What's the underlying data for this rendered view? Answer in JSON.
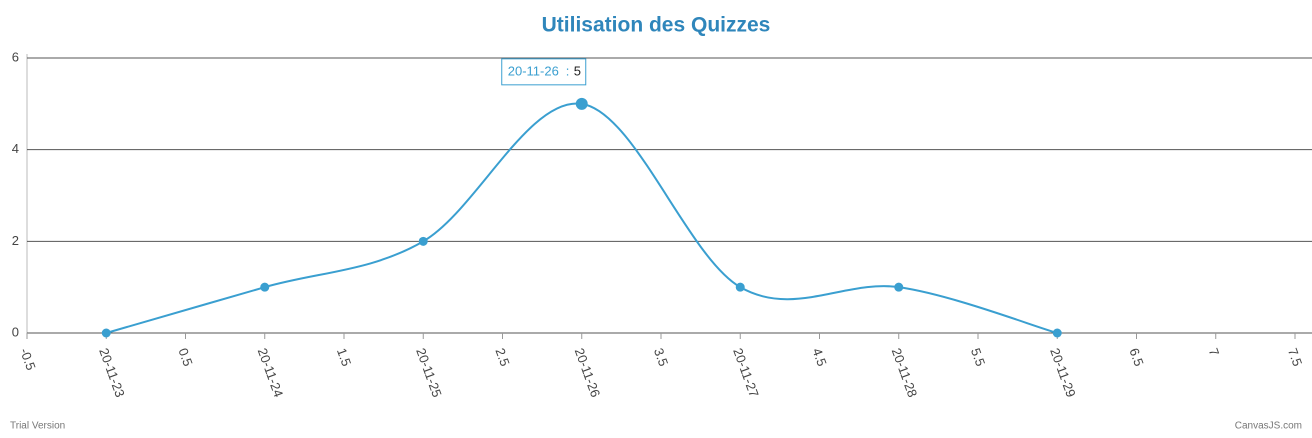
{
  "chart_data": {
    "type": "line",
    "title": "Utilisation des Quizzes",
    "x": [
      0,
      1,
      2,
      3,
      4,
      5,
      6
    ],
    "values": [
      0,
      1,
      2,
      5,
      1,
      1,
      0
    ],
    "color": "#3a9fd0",
    "xlim": [
      -0.5,
      7.5
    ],
    "xticks": [
      -0.5,
      {
        "value": 0,
        "label": "20-11-23"
      },
      0.5,
      {
        "value": 1,
        "label": "20-11-24"
      },
      1.5,
      {
        "value": 2,
        "label": "20-11-25"
      },
      2.5,
      {
        "value": 3,
        "label": "20-11-26"
      },
      3.5,
      {
        "value": 4,
        "label": "20-11-27"
      },
      4.5,
      {
        "value": 5,
        "label": "20-11-28"
      },
      5.5,
      {
        "value": 6,
        "label": "20-11-29"
      },
      6.5,
      7,
      7.5
    ],
    "ylim": [
      0,
      6
    ],
    "yticks": [
      0,
      2,
      4,
      6
    ],
    "grid": true,
    "tooltip": {
      "index": 3,
      "tick": 7
    },
    "footer": {
      "left": "Trial Version",
      "right": "CanvasJS.com"
    }
  }
}
